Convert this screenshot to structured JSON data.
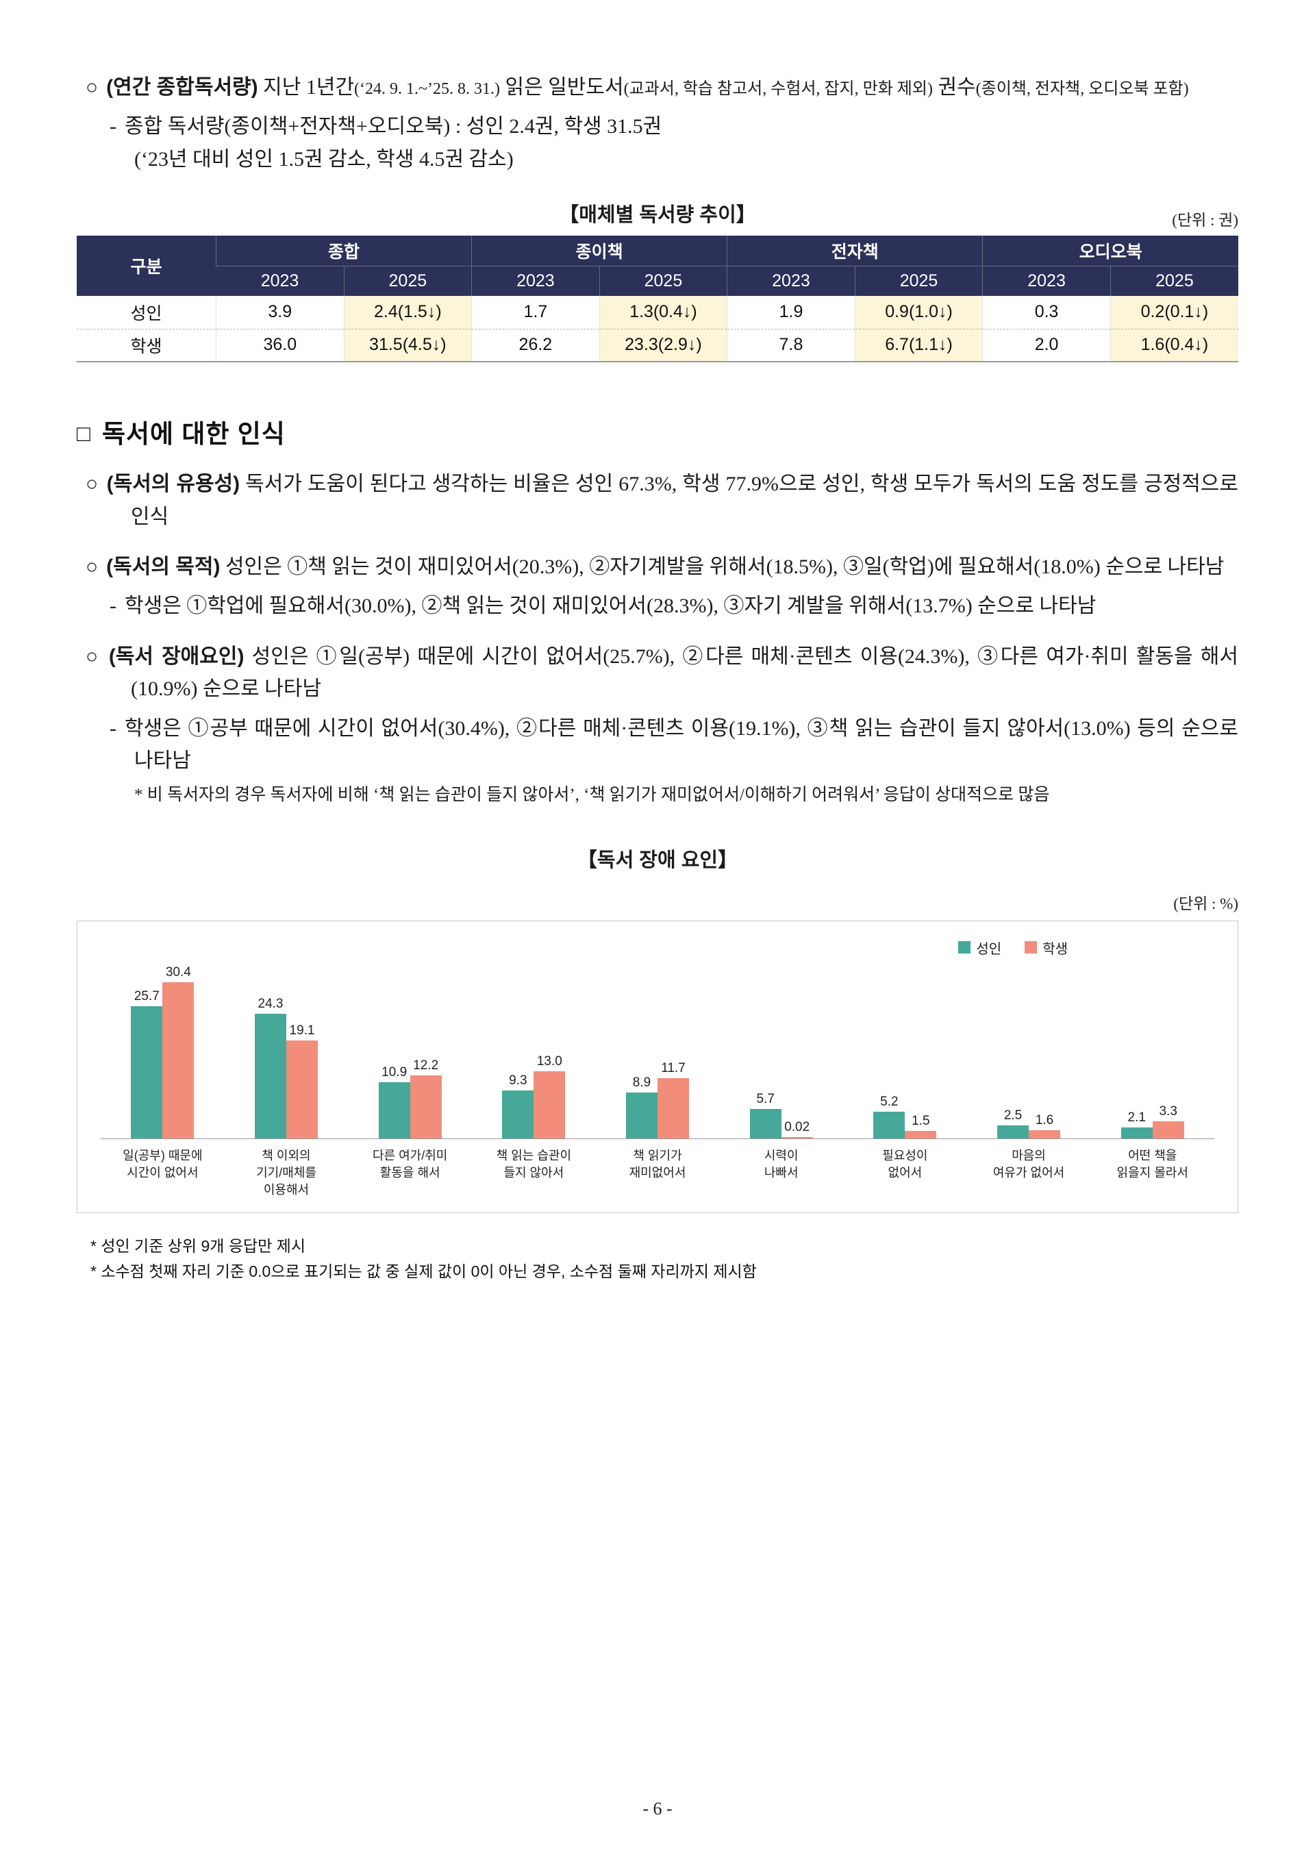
{
  "intro": {
    "marker": "○",
    "lead": "(연간 종합독서량)",
    "t1": " 지난 1년간",
    "s1": "(‘24. 9. 1.~’25. 8. 31.)",
    "t2": " 읽은 일반도서",
    "s2": "(교과서, 학습 참고서, 수험서, 잡지, 만화 제외)",
    "t3": " 권수",
    "s3": "(종이책, 전자책, 오디오북 포함)",
    "sub_marker": "-",
    "sub_line1": "종합 독서량(종이책+전자책+오디오북) : 성인 2.4권, 학생 31.5권",
    "sub_line2": "(‘23년 대비 성인 1.5권 감소, 학생 4.5권 감소)"
  },
  "table": {
    "title": "【매체별 독서량 추이】",
    "unit": "(단위 : 권)",
    "col_header": "구분",
    "groups": [
      "종합",
      "종이책",
      "전자책",
      "오디오북"
    ],
    "years": [
      "2023",
      "2025"
    ],
    "rows": [
      {
        "label": "성인",
        "cells": [
          "3.9",
          "2.4(1.5↓)",
          "1.7",
          "1.3(0.4↓)",
          "1.9",
          "0.9(1.0↓)",
          "0.3",
          "0.2(0.1↓)"
        ]
      },
      {
        "label": "학생",
        "cells": [
          "36.0",
          "31.5(4.5↓)",
          "26.2",
          "23.3(2.9↓)",
          "7.8",
          "6.7(1.1↓)",
          "2.0",
          "1.6(0.4↓)"
        ]
      }
    ]
  },
  "section": {
    "marker": "□",
    "title": "독서에 대한 인식",
    "bullets": [
      {
        "marker": "○",
        "lead": "(독서의 유용성)",
        "text": " 독서가 도움이 된다고 생각하는 비율은 성인 67.3%, 학생 77.9%으로 성인, 학생 모두가 독서의 도움 정도를 긍정적으로 인식"
      },
      {
        "marker": "○",
        "lead": "(독서의 목적)",
        "text": " 성인은 ①책 읽는 것이 재미있어서(20.3%), ②자기계발을 위해서(18.5%), ③일(학업)에 필요해서(18.0%) 순으로 나타남",
        "sub_marker": "-",
        "sub_text": "학생은 ①학업에 필요해서(30.0%), ②책 읽는 것이 재미있어서(28.3%), ③자기 계발을 위해서(13.7%) 순으로 나타남"
      },
      {
        "marker": "○",
        "lead": "(독서 장애요인)",
        "text": " 성인은 ①일(공부) 때문에 시간이 없어서(25.7%), ②다른 매체·콘텐츠 이용(24.3%), ③다른 여가·취미 활동을 해서(10.9%) 순으로 나타남",
        "sub_marker": "-",
        "sub_text": "학생은 ①공부 때문에 시간이 없어서(30.4%), ②다른 매체·콘텐츠 이용(19.1%), ③책 읽는 습관이 들지 않아서(13.0%) 등의 순으로 나타남",
        "note": "* 비 독서자의 경우 독서자에 비해 ‘책 읽는 습관이 들지 않아서’, ‘책 읽기가 재미없어서/이해하기 어려워서’ 응답이 상대적으로 많음"
      }
    ]
  },
  "chart_heading": {
    "title": "【독서 장애 요인】",
    "unit": "(단위 : %)"
  },
  "chart_data": {
    "type": "bar",
    "title": "독서 장애 요인",
    "xlabel": "",
    "ylabel": "%",
    "ylim": [
      0,
      33
    ],
    "grid": false,
    "legend_position": "top-right",
    "categories": [
      "일(공부) 때문에\n시간이 없어서",
      "책 이외의\n기기/매체를\n이용해서",
      "다른 여가/취미\n활동을 해서",
      "책 읽는 습관이\n들지 않아서",
      "책 읽기가\n재미없어서",
      "시력이\n나빠서",
      "필요성이\n없어서",
      "마음의\n여유가 없어서",
      "어떤 책을\n읽을지 몰라서"
    ],
    "series": [
      {
        "name": "성인",
        "color": "#45a898",
        "values": [
          25.7,
          24.3,
          10.9,
          9.3,
          8.9,
          5.7,
          5.2,
          2.5,
          2.1
        ],
        "labels": [
          "25.7",
          "24.3",
          "10.9",
          "9.3",
          "8.9",
          "5.7",
          "5.2",
          "2.5",
          "2.1"
        ]
      },
      {
        "name": "학생",
        "color": "#f28d7b",
        "values": [
          30.4,
          19.1,
          12.2,
          13.0,
          11.7,
          0.02,
          1.5,
          1.6,
          3.3
        ],
        "labels": [
          "30.4",
          "19.1",
          "12.2",
          "13.0",
          "11.7",
          "0.02",
          "1.5",
          "1.6",
          "3.3"
        ]
      }
    ]
  },
  "footnotes": [
    "* 성인 기준 상위 9개 응답만 제시",
    "* 소수점 첫째 자리 기준 0.0으로 표기되는 값 중 실제 값이 0이 아닌 경우, 소수점 둘째 자리까지 제시함"
  ],
  "footer": {
    "page_number": "- 6 -"
  }
}
